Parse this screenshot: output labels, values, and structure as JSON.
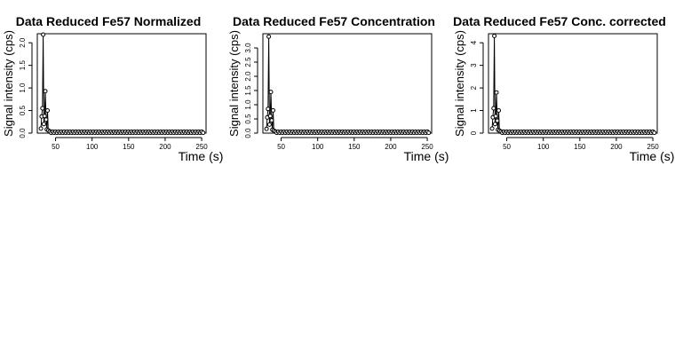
{
  "chart_data": [
    {
      "type": "scatter",
      "title": "Data Reduced Fe57 Normalized",
      "xlabel": "Time (s)",
      "ylabel": "Signal intensity (cps)",
      "xlim": [
        25,
        256
      ],
      "ylim": [
        0,
        2.2
      ],
      "xticks": [
        "50",
        "100",
        "150",
        "200",
        "250"
      ],
      "yticks": [
        "0.0",
        "0.5",
        "1.0",
        "1.5",
        "2.0"
      ],
      "grid": false,
      "legend": "none",
      "style": "points joined by lines",
      "series": [
        {
          "x": [
            30,
            31,
            32,
            33,
            34,
            35,
            36,
            37,
            38,
            39,
            40,
            42,
            45,
            50,
            60,
            80,
            100,
            125,
            150,
            175,
            200,
            225,
            250
          ],
          "y": [
            0.1,
            0.37,
            0.55,
            2.18,
            0.2,
            0.38,
            0.93,
            0.3,
            0.08,
            0.5,
            0.06,
            0.04,
            0.03,
            0.02,
            0.02,
            0.02,
            0.02,
            0.02,
            0.02,
            0.02,
            0.02,
            0.02,
            0.03
          ]
        }
      ]
    },
    {
      "type": "scatter",
      "title": "Data Reduced Fe57 Concentration",
      "xlabel": "Time (s)",
      "ylabel": "Signal intensity (cps)",
      "xlim": [
        25,
        256
      ],
      "ylim": [
        0,
        3.5
      ],
      "xticks": [
        "50",
        "100",
        "150",
        "200",
        "250"
      ],
      "yticks": [
        "0.0",
        "0.5",
        "1.0",
        "1.5",
        "2.0",
        "2.5",
        "3.0"
      ],
      "grid": false,
      "legend": "none",
      "style": "points joined by lines",
      "series": [
        {
          "x": [
            30,
            31,
            32,
            33,
            34,
            35,
            36,
            37,
            38,
            39,
            40,
            42,
            45,
            50,
            60,
            80,
            100,
            125,
            150,
            175,
            200,
            225,
            250
          ],
          "y": [
            0.15,
            0.55,
            0.85,
            3.4,
            0.3,
            0.6,
            1.45,
            0.45,
            0.12,
            0.8,
            0.09,
            0.06,
            0.04,
            0.03,
            0.03,
            0.03,
            0.03,
            0.03,
            0.03,
            0.03,
            0.03,
            0.03,
            0.05
          ]
        }
      ]
    },
    {
      "type": "scatter",
      "title": "Data Reduced Fe57 Conc. corrected",
      "xlabel": "Time (s)",
      "ylabel": "Signal intensity (cps)",
      "xlim": [
        25,
        256
      ],
      "ylim": [
        0,
        4.4
      ],
      "xticks": [
        "50",
        "100",
        "150",
        "200",
        "250"
      ],
      "yticks": [
        "0",
        "1",
        "2",
        "3",
        "4"
      ],
      "grid": false,
      "legend": "none",
      "style": "points joined by lines",
      "series": [
        {
          "x": [
            30,
            31,
            32,
            33,
            34,
            35,
            36,
            37,
            38,
            39,
            40,
            42,
            45,
            50,
            60,
            80,
            100,
            125,
            150,
            175,
            200,
            225,
            250
          ],
          "y": [
            0.2,
            0.7,
            1.1,
            4.3,
            0.4,
            0.75,
            1.8,
            0.55,
            0.15,
            1.0,
            0.11,
            0.07,
            0.05,
            0.04,
            0.04,
            0.04,
            0.04,
            0.04,
            0.04,
            0.04,
            0.04,
            0.04,
            0.06
          ]
        }
      ]
    }
  ]
}
